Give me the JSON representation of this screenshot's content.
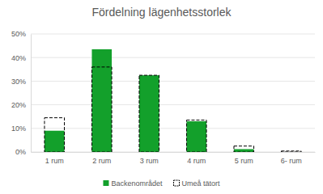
{
  "chart_data": {
    "type": "bar",
    "title": "Fördelning lägenhetsstorlek",
    "categories": [
      "1 rum",
      "2 rum",
      "3 rum",
      "4 rum",
      "5 rum",
      "6- rum"
    ],
    "series": [
      {
        "name": "Backenområdet",
        "color": "#13a02b",
        "values": [
          9,
          43.5,
          32.5,
          13,
          1.2,
          0
        ]
      },
      {
        "name": "Umeå tätort",
        "color": "#000000",
        "line_style": "dashed",
        "values": [
          14.5,
          36,
          32.5,
          13.5,
          2.5,
          0.4
        ]
      }
    ],
    "ylim": [
      0,
      50
    ],
    "yticks": [
      {
        "value": 0,
        "label": "0%"
      },
      {
        "value": 10,
        "label": "10%"
      },
      {
        "value": 20,
        "label": "20%"
      },
      {
        "value": 30,
        "label": "30%"
      },
      {
        "value": 40,
        "label": "40%"
      },
      {
        "value": 50,
        "label": "50%"
      }
    ],
    "grid": true,
    "legend": "bottom"
  }
}
